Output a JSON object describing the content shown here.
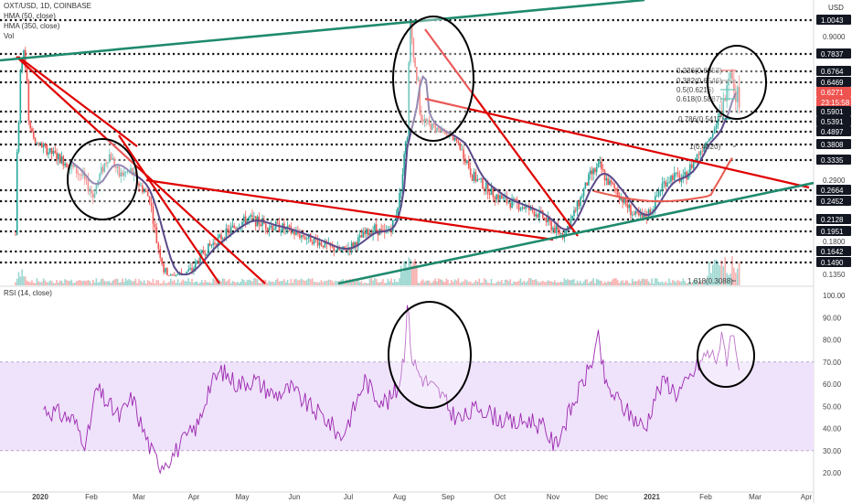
{
  "header": {
    "symbol": "OXT/USD, 1D, COINBASE",
    "hma50": "HMA (50, close)",
    "hma350": "HMA (350, close)",
    "vol": "Vol"
  },
  "rsi_header": "RSI (14, close)",
  "currency": "USD",
  "colors": {
    "up": "#26a69a",
    "down": "#ef5350",
    "hma50": "#5b4a8a",
    "hma350": "#e85a4f",
    "trend_red": "#e00000",
    "trend_green": "#1f8a6e",
    "rsi_line": "#9c27b0",
    "rsi_band": "#efe2fb",
    "current_price": "#ef5350"
  },
  "chart_data": [
    {
      "type": "line",
      "title": "OXT/USD, 1D, COINBASE",
      "price_axis": [
        {
          "value": "1.0043",
          "kind": "badge"
        },
        {
          "value": "0.9000",
          "kind": "tick"
        },
        {
          "value": "0.7837",
          "kind": "badge"
        },
        {
          "value": "0.6764",
          "kind": "badge"
        },
        {
          "value": "0.6469",
          "kind": "badge"
        },
        {
          "value": "0.6271",
          "kind": "current"
        },
        {
          "value": "23:15:58",
          "kind": "countdown"
        },
        {
          "value": "0.5901",
          "kind": "badge"
        },
        {
          "value": "0.5391",
          "kind": "badge"
        },
        {
          "value": "0.4897",
          "kind": "badge"
        },
        {
          "value": "0.3808",
          "kind": "badge"
        },
        {
          "value": "0.3335",
          "kind": "badge"
        },
        {
          "value": "0.2900",
          "kind": "tick"
        },
        {
          "value": "0.2664",
          "kind": "badge"
        },
        {
          "value": "0.2452",
          "kind": "badge"
        },
        {
          "value": "0.2128",
          "kind": "badge"
        },
        {
          "value": "0.1951",
          "kind": "badge"
        },
        {
          "value": "0.1800",
          "kind": "tick"
        },
        {
          "value": "0.1642",
          "kind": "badge"
        },
        {
          "value": "0.1490",
          "kind": "badge"
        },
        {
          "value": "0.1350",
          "kind": "tick"
        }
      ],
      "x_labels": [
        "2020",
        "Feb",
        "Mar",
        "Apr",
        "May",
        "Jun",
        "Jul",
        "Aug",
        "Sep",
        "Oct",
        "Nov",
        "Dec",
        "2021",
        "Feb",
        "Mar",
        "Apr"
      ],
      "series": [
        {
          "name": "HMA (50, close)",
          "role": "hma50"
        },
        {
          "name": "HMA (350, close)",
          "role": "hma350"
        },
        {
          "name": "Vol",
          "role": "volume"
        }
      ],
      "fib_labels": [
        "0.236(0.6953)",
        "0.382(0.6546)",
        "0.5(0.6216)",
        "0.618(0.5887)",
        "0.786(0.5417)",
        "1(0.4820)",
        "1.618(0.3088)"
      ],
      "horizontal_levels": [
        "1.0043",
        "0.7837",
        "0.6764",
        "0.6469",
        "0.5901",
        "0.5391",
        "0.4897",
        "0.3808",
        "0.3335",
        "0.2664",
        "0.2452",
        "0.2128",
        "0.1951",
        "0.1642",
        "0.1490"
      ],
      "annotations": [
        "circle near Feb 2020",
        "circle near Aug–Sep 2020",
        "circle near Feb 2021"
      ]
    },
    {
      "type": "line",
      "title": "RSI (14, close)",
      "ticks": [
        "100.00",
        "90.00",
        "80.00",
        "70.00",
        "60.00",
        "50.00",
        "40.00",
        "30.00",
        "20.00"
      ],
      "ylim": [
        15,
        100
      ],
      "band": [
        30,
        70
      ],
      "annotations": [
        "circle near Aug 2020 peak",
        "circle near Feb 2021 peak"
      ]
    }
  ]
}
